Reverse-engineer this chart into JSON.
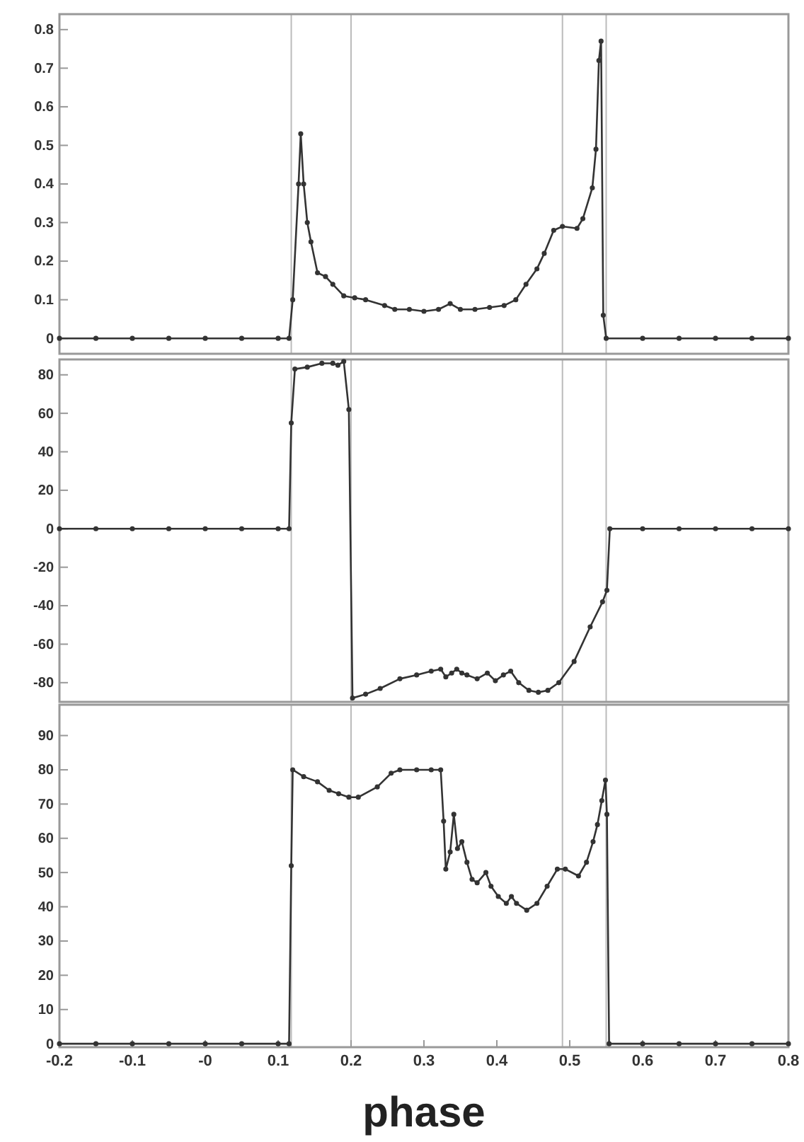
{
  "chart_data": [
    {
      "type": "line",
      "xlim": [
        -0.2,
        0.8
      ],
      "ylim": [
        -0.04,
        0.84
      ],
      "yticks": [
        0,
        0.1,
        0.2,
        0.3,
        0.4,
        0.5,
        0.6,
        0.7,
        0.8
      ],
      "tick_labels": "y",
      "marker": "circle",
      "line_style": "solid",
      "ref_lines": [
        {
          "axis": "x",
          "value": 0.118,
          "color": "#bbbbbb"
        },
        {
          "axis": "x",
          "value": 0.2,
          "color": "#bbbbbb"
        },
        {
          "axis": "x",
          "value": 0.49,
          "color": "#bbbbbb"
        },
        {
          "axis": "x",
          "value": 0.55,
          "color": "#bbbbbb"
        }
      ],
      "series": [
        {
          "color": "#333333",
          "x": [
            -0.2,
            -0.15,
            -0.1,
            -0.05,
            0,
            0.05,
            0.1,
            0.115,
            0.12,
            0.128,
            0.131,
            0.135,
            0.14,
            0.145,
            0.154,
            0.165,
            0.175,
            0.19,
            0.205,
            0.22,
            0.246,
            0.26,
            0.28,
            0.3,
            0.32,
            0.336,
            0.35,
            0.37,
            0.39,
            0.41,
            0.426,
            0.44,
            0.455,
            0.465,
            0.478,
            0.49,
            0.51,
            0.518,
            0.531,
            0.536,
            0.54,
            0.543,
            0.546,
            0.55,
            0.6,
            0.65,
            0.7,
            0.75,
            0.8
          ],
          "values": [
            0,
            0,
            0,
            0,
            0,
            0,
            0,
            0,
            0.1,
            0.4,
            0.53,
            0.4,
            0.3,
            0.25,
            0.17,
            0.16,
            0.14,
            0.11,
            0.105,
            0.1,
            0.085,
            0.075,
            0.075,
            0.07,
            0.075,
            0.09,
            0.075,
            0.075,
            0.08,
            0.085,
            0.1,
            0.14,
            0.18,
            0.22,
            0.28,
            0.29,
            0.285,
            0.31,
            0.39,
            0.49,
            0.72,
            0.77,
            0.06,
            0,
            0,
            0,
            0,
            0,
            0
          ]
        }
      ]
    },
    {
      "type": "line",
      "xlim": [
        -0.2,
        0.8
      ],
      "ylim": [
        -90,
        88
      ],
      "yticks": [
        -80,
        -60,
        -40,
        -20,
        0,
        20,
        40,
        60,
        80
      ],
      "tick_labels": "y",
      "marker": "circle",
      "line_style": "solid",
      "ref_lines": [
        {
          "axis": "x",
          "value": 0.118,
          "color": "#bbbbbb"
        },
        {
          "axis": "x",
          "value": 0.2,
          "color": "#bbbbbb"
        },
        {
          "axis": "x",
          "value": 0.49,
          "color": "#bbbbbb"
        },
        {
          "axis": "x",
          "value": 0.55,
          "color": "#bbbbbb"
        }
      ],
      "series": [
        {
          "color": "#333333",
          "x": [
            -0.2,
            -0.15,
            -0.1,
            -0.05,
            0,
            0.05,
            0.1,
            0.115,
            0.118,
            0.123,
            0.14,
            0.16,
            0.175,
            0.182,
            0.19,
            0.197,
            0.202,
            0.22,
            0.24,
            0.267,
            0.29,
            0.31,
            0.323,
            0.33,
            0.338,
            0.345,
            0.352,
            0.359,
            0.373,
            0.387,
            0.398,
            0.409,
            0.419,
            0.43,
            0.444,
            0.457,
            0.47,
            0.485,
            0.506,
            0.528,
            0.545,
            0.551,
            0.555,
            0.6,
            0.65,
            0.7,
            0.75,
            0.8
          ],
          "values": [
            0,
            0,
            0,
            0,
            0,
            0,
            0,
            0,
            55,
            83,
            84,
            86,
            86,
            85,
            87,
            62,
            -88,
            -86,
            -83,
            -78,
            -76,
            -74,
            -73,
            -77,
            -75,
            -73,
            -75,
            -76,
            -78,
            -75,
            -79,
            -76,
            -74,
            -80,
            -84,
            -85,
            -84,
            -80,
            -69,
            -51,
            -38,
            -32,
            0,
            0,
            0,
            0,
            0,
            0
          ]
        }
      ]
    },
    {
      "type": "line",
      "xlim": [
        -0.2,
        0.8
      ],
      "ylim": [
        -1,
        99
      ],
      "xticks": [
        -0.2,
        -0.1,
        {
          "value": 0,
          "label": "-0"
        },
        0.1,
        0.2,
        0.3,
        0.4,
        0.5,
        0.6,
        0.7,
        0.8
      ],
      "yticks": [
        0,
        10,
        20,
        30,
        40,
        50,
        60,
        70,
        80,
        90
      ],
      "xlabel": "phase",
      "marker": "circle",
      "line_style": "solid",
      "ref_lines": [
        {
          "axis": "x",
          "value": 0.118,
          "color": "#bbbbbb"
        },
        {
          "axis": "x",
          "value": 0.2,
          "color": "#bbbbbb"
        },
        {
          "axis": "x",
          "value": 0.49,
          "color": "#bbbbbb"
        },
        {
          "axis": "x",
          "value": 0.55,
          "color": "#bbbbbb"
        }
      ],
      "series": [
        {
          "color": "#333333",
          "x": [
            -0.2,
            -0.15,
            -0.1,
            -0.05,
            0,
            0.05,
            0.1,
            0.115,
            0.118,
            0.12,
            0.135,
            0.154,
            0.17,
            0.183,
            0.197,
            0.21,
            0.236,
            0.255,
            0.267,
            0.29,
            0.31,
            0.323,
            0.327,
            0.33,
            0.336,
            0.341,
            0.346,
            0.352,
            0.359,
            0.366,
            0.373,
            0.385,
            0.392,
            0.402,
            0.413,
            0.42,
            0.427,
            0.441,
            0.455,
            0.469,
            0.483,
            0.494,
            0.512,
            0.523,
            0.532,
            0.538,
            0.544,
            0.549,
            0.551,
            0.554,
            0.6,
            0.65,
            0.7,
            0.75,
            0.8
          ],
          "values": [
            0,
            0,
            0,
            0,
            0,
            0,
            0,
            0,
            52,
            80,
            78,
            76.5,
            74,
            73,
            72,
            72,
            75,
            79,
            80,
            80,
            80,
            80,
            65,
            51,
            56,
            67,
            57,
            59,
            53,
            48,
            47,
            50,
            46,
            43,
            41,
            43,
            41,
            39,
            41,
            46,
            51,
            51,
            49,
            53,
            59,
            64,
            71,
            77,
            67,
            0,
            0,
            0,
            0,
            0,
            0
          ]
        }
      ]
    }
  ]
}
